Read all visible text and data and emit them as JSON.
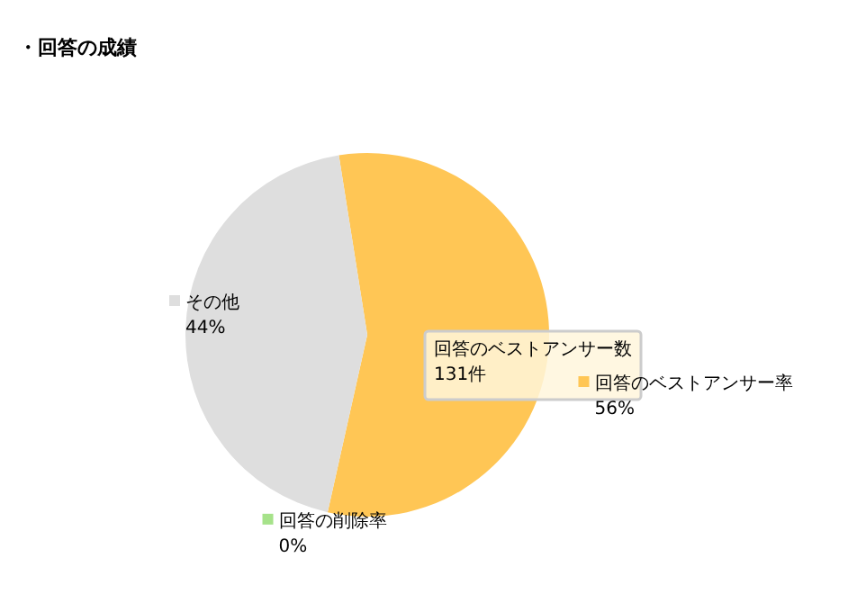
{
  "chart_data": {
    "type": "pie",
    "title": "・回答の成績",
    "categories": [
      "回答のベストアンサー率",
      "回答の削除率",
      "その他"
    ],
    "values": [
      56,
      0,
      44
    ],
    "colors": [
      "#ffc655",
      "#a6e28a",
      "#dedede"
    ],
    "value_labels": [
      "56%",
      "0%",
      "44%"
    ],
    "legend": "right",
    "annotations": [
      "回答のベストアンサー数\n131件"
    ]
  }
}
